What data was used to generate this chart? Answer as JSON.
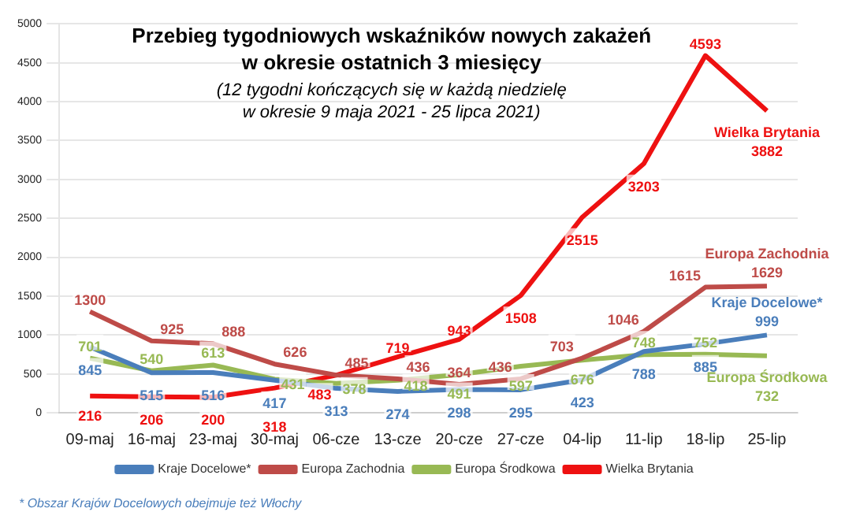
{
  "chart_data": {
    "type": "line",
    "title": "Przebieg tygodniowych wskaźników nowych zakażeń\nw okresie ostatnich 3 miesięcy",
    "subtitle": "(12 tygodni kończących się w każdą niedzielę\nw okresie 9 maja 2021 - 25 lipca 2021)",
    "categories": [
      "09-maj",
      "16-maj",
      "23-maj",
      "30-maj",
      "06-cze",
      "13-cze",
      "20-cze",
      "27-cze",
      "04-lip",
      "11-lip",
      "18-lip",
      "25-lip"
    ],
    "series": [
      {
        "name": "Kraje Docelowe*",
        "color": "#4a7ebb",
        "values": [
          845,
          515,
          516,
          417,
          313,
          274,
          298,
          295,
          423,
          788,
          885,
          999
        ]
      },
      {
        "name": "Europa Zachodnia",
        "color": "#be4b48",
        "values": [
          1300,
          925,
          888,
          626,
          485,
          436,
          364,
          436,
          703,
          1046,
          1615,
          1629
        ]
      },
      {
        "name": "Europa Środkowa",
        "color": "#98b954",
        "values": [
          701,
          540,
          613,
          431,
          378,
          418,
          491,
          597,
          676,
          748,
          752,
          732
        ]
      },
      {
        "name": "Wielka Brytania",
        "color": "#ee1111",
        "values": [
          216,
          206,
          200,
          318,
          483,
          719,
          943,
          1508,
          2515,
          3203,
          4593,
          3882
        ]
      }
    ],
    "ylim": [
      0,
      5000
    ],
    "yticks": [
      0,
      500,
      1000,
      1500,
      2000,
      2500,
      3000,
      3500,
      4000,
      4500,
      5000
    ],
    "grid": "y",
    "legend": "bottom",
    "data_labels": true,
    "marker": "none",
    "annotations": [
      "* Obszar Krajów Docelowych obejmuje też Włochy"
    ]
  }
}
